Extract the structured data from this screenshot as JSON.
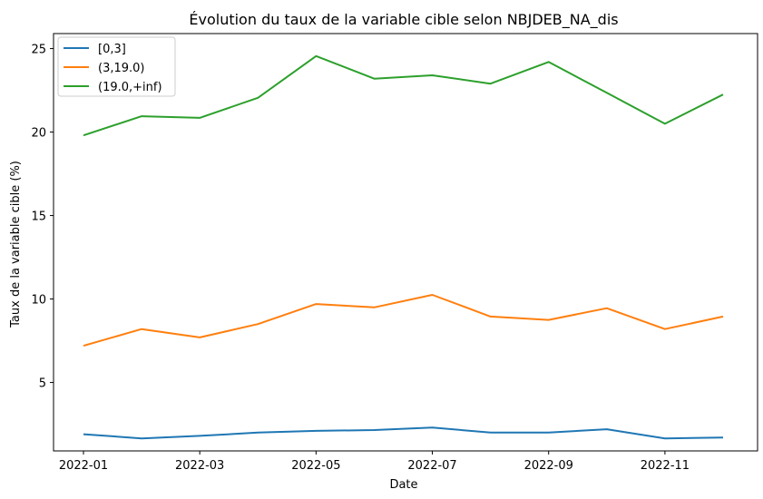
{
  "chart_data": {
    "type": "line",
    "title": "Évolution du taux de la variable cible selon NBJDEB_NA_dis",
    "xlabel": "Date",
    "ylabel": "Taux de la variable cible (%)",
    "x": [
      "2022-01",
      "2022-02",
      "2022-03",
      "2022-04",
      "2022-05",
      "2022-06",
      "2022-07",
      "2022-08",
      "2022-09",
      "2022-10",
      "2022-11",
      "2022-12"
    ],
    "x_tick_labels": [
      "2022-01",
      "2022-03",
      "2022-05",
      "2022-07",
      "2022-09",
      "2022-11"
    ],
    "y_ticks": [
      5,
      10,
      15,
      20,
      25
    ],
    "ylim": [
      0.9,
      25.9
    ],
    "grid": false,
    "legend_position": "top-left",
    "series": [
      {
        "name": "[0,3]",
        "color": "#1f77b4",
        "values": [
          1.9,
          1.65,
          1.8,
          2.0,
          2.1,
          2.15,
          2.3,
          2.0,
          2.0,
          2.2,
          1.65,
          1.7
        ]
      },
      {
        "name": "(3,19.0)",
        "color": "#ff7f0e",
        "values": [
          7.2,
          8.2,
          7.7,
          8.5,
          9.7,
          9.5,
          10.25,
          8.95,
          8.75,
          9.45,
          8.2,
          8.95
        ]
      },
      {
        "name": "(19.0,+inf)",
        "color": "#2ca02c",
        "values": [
          19.8,
          20.95,
          20.85,
          22.05,
          24.55,
          23.2,
          23.4,
          22.9,
          24.2,
          22.35,
          20.5,
          22.25
        ]
      }
    ]
  }
}
